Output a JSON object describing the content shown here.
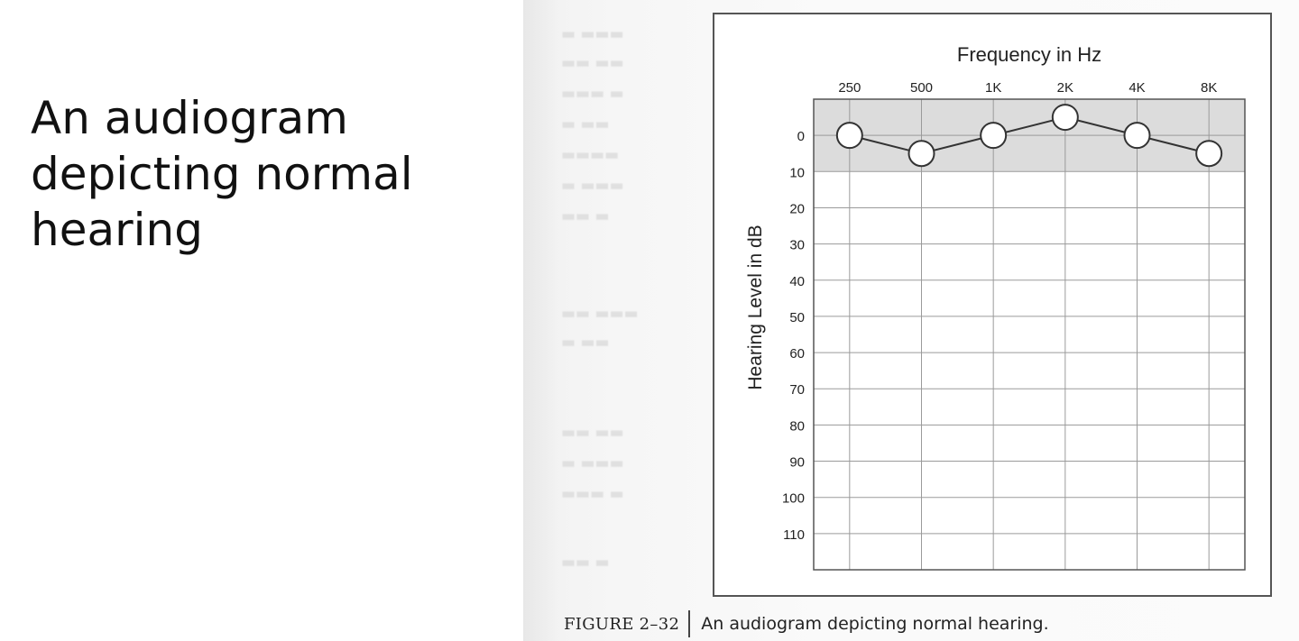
{
  "slide": {
    "title": "An audiogram\ndepicting normal\nhearing"
  },
  "figure": {
    "label": "FIGURE 2–32",
    "caption": "An audiogram depicting normal hearing."
  },
  "colors": {
    "normal_band": "#dcdcdc",
    "grid": "#9a9a9a",
    "line": "#333333",
    "marker_fill": "#ffffff",
    "marker_stroke": "#333333"
  },
  "chart_data": {
    "type": "line",
    "title": "Frequency in Hz",
    "xlabel": "Frequency in Hz",
    "ylabel": "Hearing Level in dB",
    "categories": [
      "250",
      "500",
      "1K",
      "2K",
      "4K",
      "8K"
    ],
    "y_ticks": [
      0,
      10,
      20,
      30,
      40,
      50,
      60,
      70,
      80,
      90,
      100,
      110
    ],
    "ylim": [
      -10,
      120
    ],
    "y_inverted": true,
    "grid": true,
    "normal_range": [
      -10,
      10
    ],
    "series": [
      {
        "values": [
          0,
          5,
          0,
          -5,
          0,
          5
        ]
      }
    ]
  }
}
